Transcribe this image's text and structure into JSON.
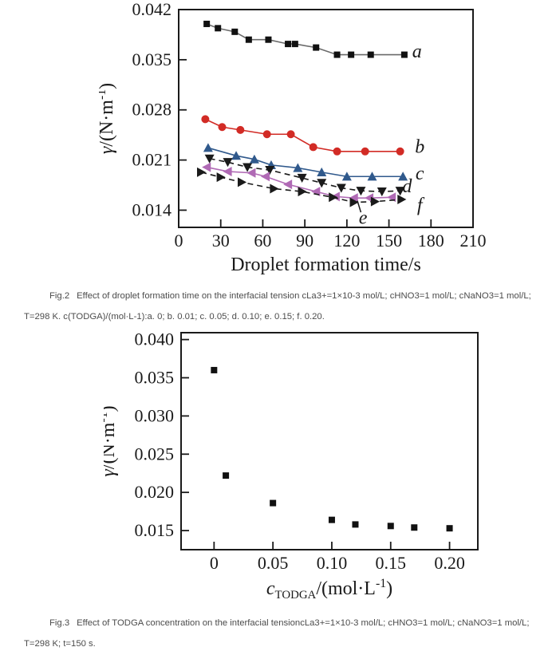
{
  "figure2": {
    "caption_label": "Fig.2",
    "caption_body": "Effect of droplet formation time on the interfacial tension cLa3+=1×10-3 mol/L; cHNO3=1 mol/L; cNaNO3=1 mol/L; T=298 K. c(TODGA)/(mol·L-1):a. 0; b. 0.01; c. 0.05; d. 0.10; e. 0.15; f. 0.20."
  },
  "figure3": {
    "caption_label": "Fig.3",
    "caption_body": "Effect of TODGA concentration on the interfacial tensioncLa3+=1×10-3 mol/L; cHNO3=1 mol/L; cNaNO3=1 mol/L; T=298 K; t=150 s."
  },
  "chart_data": [
    {
      "id": "fig2",
      "type": "line",
      "title": "",
      "xlabel_parts": [
        {
          "t": "Droplet formation time/s"
        }
      ],
      "ylabel_parts": [
        {
          "t": "γ",
          "s": "i"
        },
        {
          "t": "/(N·m"
        },
        {
          "t": "-1",
          "s": "sup"
        },
        {
          "t": ")"
        }
      ],
      "xlim": [
        0,
        210
      ],
      "ylim": [
        0.0116,
        0.042
      ],
      "grid": false,
      "legend_position": "inline-right-labels",
      "frame_color": "#1a1a1a",
      "xticks": [
        {
          "v": 0,
          "label": "0"
        },
        {
          "v": 30,
          "label": "30"
        },
        {
          "v": 60,
          "label": "60"
        },
        {
          "v": 90,
          "label": "90"
        },
        {
          "v": 120,
          "label": "120"
        },
        {
          "v": 150,
          "label": "150"
        },
        {
          "v": 180,
          "label": "180"
        },
        {
          "v": 210,
          "label": "210"
        }
      ],
      "yticks": [
        {
          "v": 0.014,
          "label": "0.014"
        },
        {
          "v": 0.021,
          "label": "0.021"
        },
        {
          "v": 0.028,
          "label": "0.028"
        },
        {
          "v": 0.035,
          "label": "0.035"
        },
        {
          "v": 0.042,
          "label": "0.042"
        }
      ],
      "series": [
        {
          "name": "a (c(TODGA)=0)",
          "marker": "square",
          "color": "#111111",
          "line_color": "#6a6a6a",
          "line": "solid",
          "points": [
            [
              20,
              0.04
            ],
            [
              28,
              0.0394
            ],
            [
              40,
              0.0389
            ],
            [
              50,
              0.0378
            ],
            [
              64,
              0.0378
            ],
            [
              78,
              0.0372
            ],
            [
              83,
              0.0372
            ],
            [
              98,
              0.0367
            ],
            [
              113,
              0.0357
            ],
            [
              123,
              0.0357
            ],
            [
              137,
              0.0357
            ],
            [
              161,
              0.0357
            ]
          ],
          "label": "a",
          "label_at": [
            170,
            0.0362
          ]
        },
        {
          "name": "b (0.01)",
          "marker": "circle",
          "color": "#d22b25",
          "line": "solid",
          "points": [
            [
              19,
              0.0267
            ],
            [
              31,
              0.0256
            ],
            [
              44,
              0.0252
            ],
            [
              63,
              0.0246
            ],
            [
              80,
              0.0246
            ],
            [
              96,
              0.0228
            ],
            [
              113,
              0.0222
            ],
            [
              133,
              0.0222
            ],
            [
              158,
              0.0222
            ]
          ],
          "label": "b",
          "label_at": [
            172,
            0.0229
          ]
        },
        {
          "name": "c (0.05)",
          "marker": "triangle-up",
          "color": "#30598c",
          "line": "solid",
          "points": [
            [
              21,
              0.0227
            ],
            [
              41,
              0.0216
            ],
            [
              54,
              0.0211
            ],
            [
              66,
              0.0203
            ],
            [
              85,
              0.0199
            ],
            [
              102,
              0.0193
            ],
            [
              120,
              0.0187
            ],
            [
              138,
              0.0187
            ],
            [
              160,
              0.0187
            ]
          ],
          "label": "c",
          "label_at": [
            172,
            0.0192
          ]
        },
        {
          "name": "d (0.10)",
          "marker": "triangle-down",
          "color": "#1a1a1a",
          "line": "dashed",
          "points": [
            [
              22,
              0.0212
            ],
            [
              35,
              0.0207
            ],
            [
              49,
              0.02
            ],
            [
              65,
              0.0196
            ],
            [
              88,
              0.0185
            ],
            [
              102,
              0.0178
            ],
            [
              116,
              0.0171
            ],
            [
              130,
              0.0167
            ],
            [
              145,
              0.0166
            ],
            [
              158,
              0.0167
            ]
          ],
          "label": "d",
          "label_at": [
            163,
            0.0174
          ]
        },
        {
          "name": "e (0.15)",
          "marker": "triangle-left",
          "color": "#b06ab5",
          "line": "solid",
          "points": [
            [
              20,
              0.02
            ],
            [
              35,
              0.0194
            ],
            [
              52,
              0.0192
            ],
            [
              62,
              0.0187
            ],
            [
              78,
              0.0176
            ],
            [
              98,
              0.0166
            ],
            [
              112,
              0.0159
            ],
            [
              125,
              0.0157
            ],
            [
              136,
              0.0157
            ],
            [
              152,
              0.0158
            ]
          ],
          "label": null,
          "label_at": null
        },
        {
          "name": "f (0.20)",
          "marker": "triangle-right",
          "color": "#1a1a1a",
          "line": "dashed",
          "points": [
            [
              16,
              0.0193
            ],
            [
              30,
              0.0186
            ],
            [
              45,
              0.0179
            ],
            [
              68,
              0.017
            ],
            [
              88,
              0.0166
            ],
            [
              110,
              0.0158
            ],
            [
              125,
              0.0151
            ],
            [
              140,
              0.0152
            ],
            [
              159,
              0.0155
            ]
          ],
          "label": "f",
          "label_at": [
            172,
            0.0148
          ]
        }
      ],
      "annotations": [
        {
          "type": "text",
          "text": "e",
          "x": 131.5,
          "y": 0.013
        },
        {
          "type": "line",
          "x1": 130,
          "y1": 0.0137,
          "x2": 127.5,
          "y2": 0.0153
        }
      ]
    },
    {
      "id": "fig3",
      "type": "scatter",
      "title": "",
      "xlabel_parts": [
        {
          "t": "c",
          "s": "i"
        },
        {
          "t": "TODGA",
          "s": "sub"
        },
        {
          "t": "/(mol·L"
        },
        {
          "t": "-1",
          "s": "sup"
        },
        {
          "t": ")"
        }
      ],
      "ylabel_parts": [
        {
          "t": "γ",
          "s": "i"
        },
        {
          "t": "/(N·m"
        },
        {
          "t": "-1",
          "s": "sup"
        },
        {
          "t": ")"
        }
      ],
      "xlim": [
        -0.028,
        0.224
      ],
      "ylim": [
        0.0125,
        0.0409
      ],
      "grid": false,
      "legend_position": "none",
      "frame_color": "#1a1a1a",
      "xticks": [
        {
          "v": 0,
          "label": "0"
        },
        {
          "v": 0.05,
          "label": "0.05"
        },
        {
          "v": 0.1,
          "label": "0.10"
        },
        {
          "v": 0.15,
          "label": "0.15"
        },
        {
          "v": 0.2,
          "label": "0.20"
        }
      ],
      "yticks": [
        {
          "v": 0.015,
          "label": "0.015"
        },
        {
          "v": 0.02,
          "label": "0.020"
        },
        {
          "v": 0.025,
          "label": "0.025"
        },
        {
          "v": 0.03,
          "label": "0.030"
        },
        {
          "v": 0.035,
          "label": "0.035"
        },
        {
          "v": 0.04,
          "label": "0.040"
        }
      ],
      "series": [
        {
          "name": "interfacial tension vs TODGA concentration",
          "marker": "square",
          "color": "#111111",
          "line": "none",
          "points": [
            [
              0,
              0.036
            ],
            [
              0.01,
              0.0222
            ],
            [
              0.05,
              0.0186
            ],
            [
              0.1,
              0.0164
            ],
            [
              0.12,
              0.0158
            ],
            [
              0.15,
              0.0156
            ],
            [
              0.17,
              0.0154
            ],
            [
              0.2,
              0.0153
            ]
          ],
          "label": null,
          "label_at": null
        }
      ],
      "annotations": []
    }
  ]
}
